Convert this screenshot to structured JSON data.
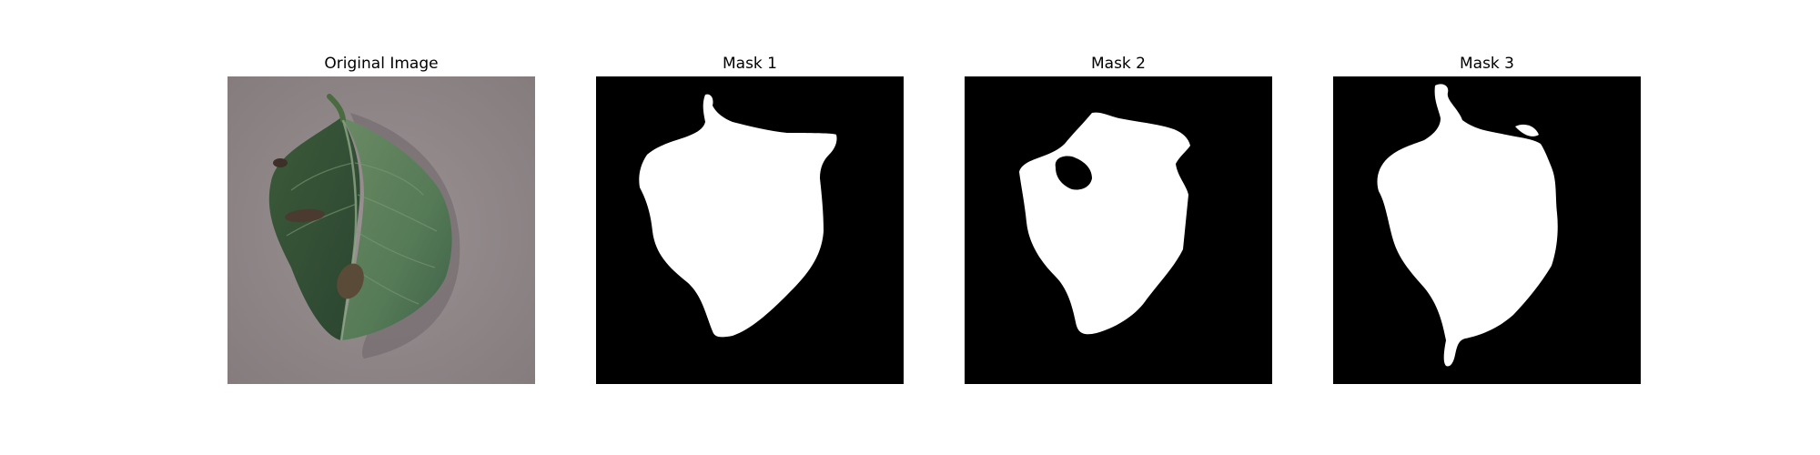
{
  "figure": {
    "panels": [
      {
        "title": "Original Image",
        "kind": "photo"
      },
      {
        "title": "Mask 1",
        "kind": "mask"
      },
      {
        "title": "Mask 2",
        "kind": "mask"
      },
      {
        "title": "Mask 3",
        "kind": "mask"
      }
    ]
  },
  "colors": {
    "mask_background": "#000000",
    "mask_foreground": "#ffffff",
    "photo_background": "#8f8688",
    "leaf_dark": "#2f4a2f",
    "leaf_mid": "#4a6a48",
    "leaf_light": "#6f8f68",
    "lesion": "#4a3a30"
  }
}
